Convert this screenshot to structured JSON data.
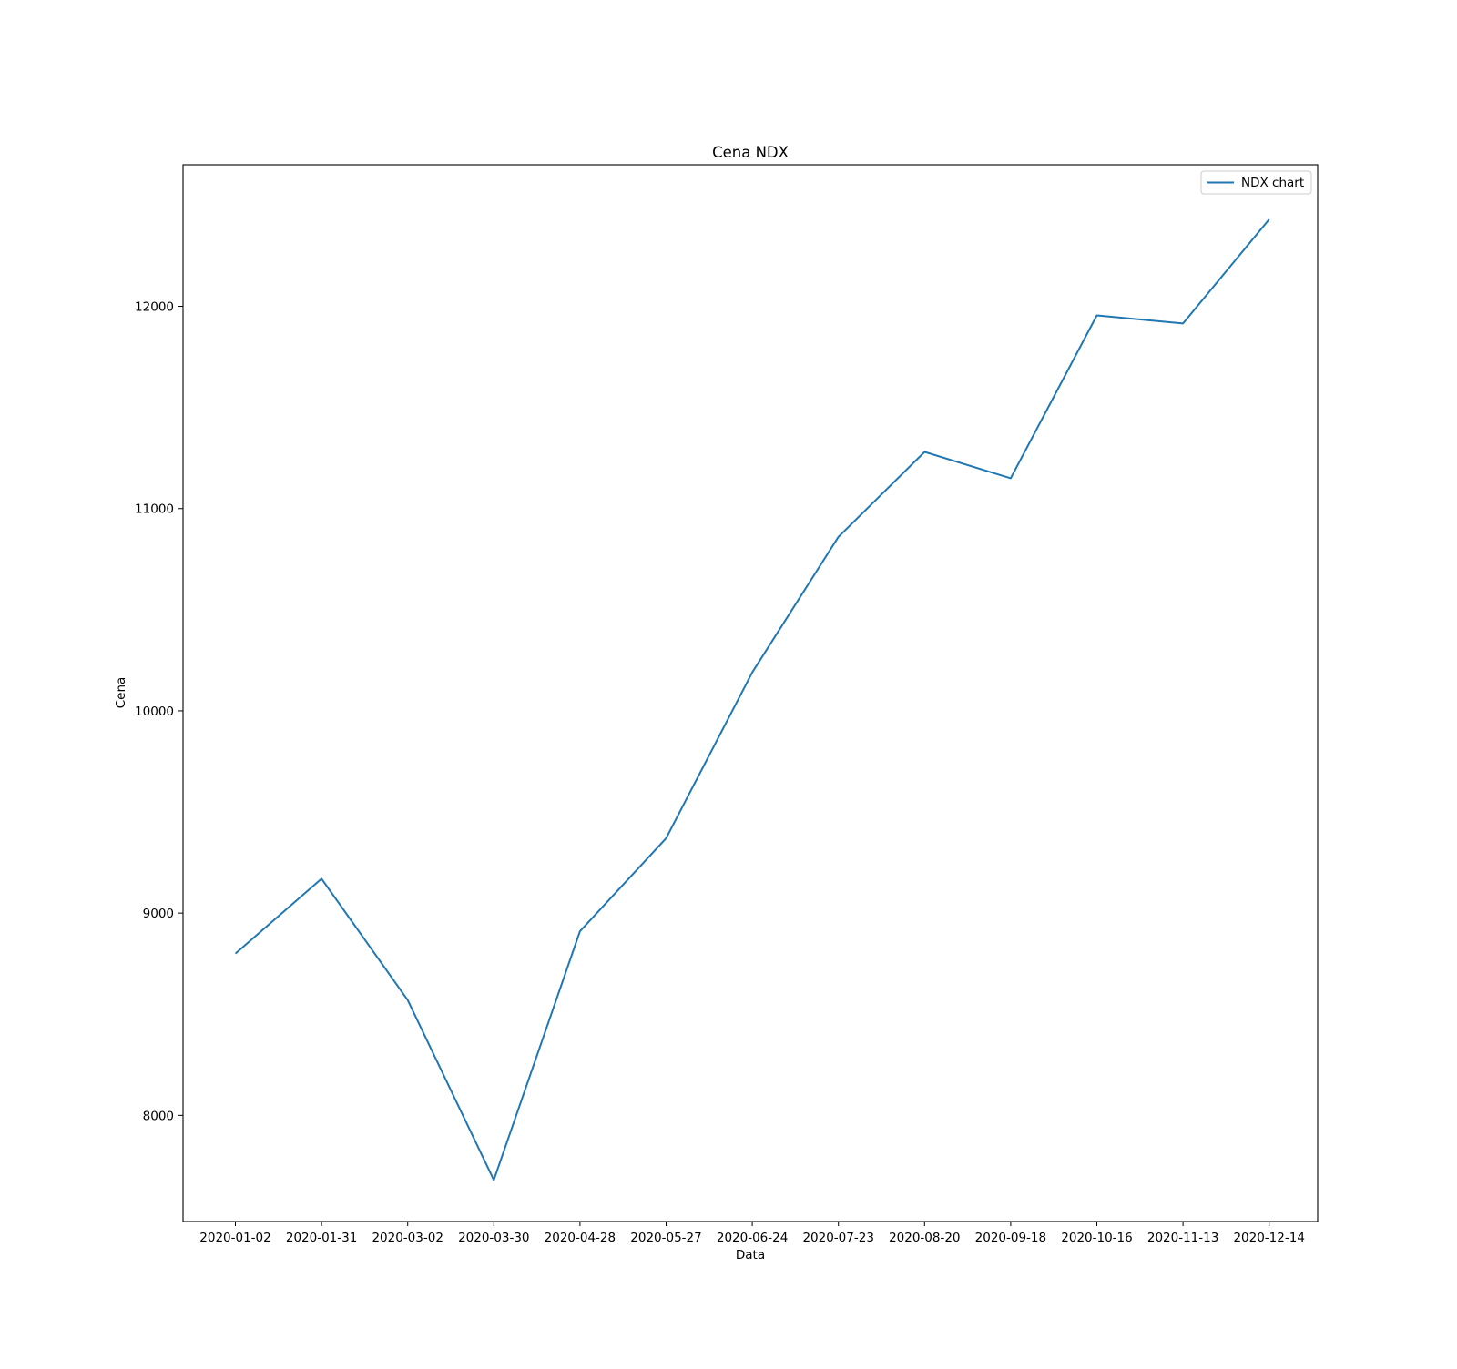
{
  "chart_data": {
    "type": "line",
    "title": "Cena NDX",
    "xlabel": "Data",
    "ylabel": "Cena",
    "x": [
      "2020-01-02",
      "2020-01-31",
      "2020-03-02",
      "2020-03-30",
      "2020-04-28",
      "2020-05-27",
      "2020-06-24",
      "2020-07-23",
      "2020-08-20",
      "2020-09-18",
      "2020-10-16",
      "2020-11-13",
      "2020-12-14"
    ],
    "series": [
      {
        "name": "NDX chart",
        "color": "#1f77b4",
        "values": [
          8800,
          9170,
          8570,
          7680,
          8910,
          9370,
          10190,
          10860,
          11280,
          11150,
          11955,
          11915,
          12430
        ]
      }
    ],
    "ylim": [
      7475,
      12700
    ],
    "yticks": [
      8000,
      9000,
      10000,
      11000,
      12000
    ],
    "ytick_labels": [
      "8000",
      "9000",
      "10000",
      "11000",
      "12000"
    ],
    "grid": false,
    "legend": "top-right"
  }
}
